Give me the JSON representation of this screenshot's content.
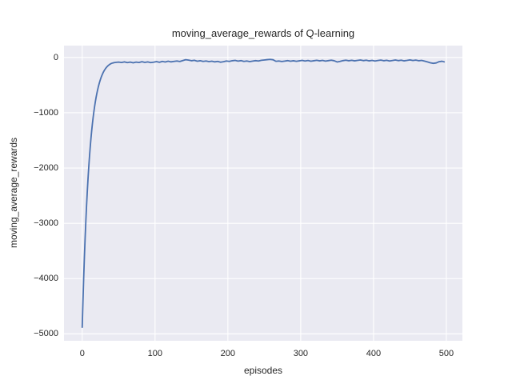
{
  "chart_data": {
    "type": "line",
    "title": "moving_average_rewards of Q-learning",
    "xlabel": "episodes",
    "ylabel": "moving_average_rewards",
    "grid": true,
    "legend": null,
    "xlim": [
      -25,
      522
    ],
    "ylim": [
      -5125,
      215
    ],
    "x_ticks": {
      "values": [
        0,
        100,
        200,
        300,
        400,
        500
      ],
      "labels": [
        "0",
        "100",
        "200",
        "300",
        "400",
        "500"
      ]
    },
    "y_ticks": {
      "values": [
        0,
        -1000,
        -2000,
        -3000,
        -4000,
        -5000
      ],
      "labels": [
        "0",
        "−1000",
        "−2000",
        "−3000",
        "−4000",
        "−5000"
      ]
    },
    "colors": {
      "line": "#4c72b0",
      "axes_background": "#eaeaf2",
      "grid": "#ffffff",
      "text": "#262626",
      "figure_background": "#ffffff"
    },
    "series": [
      {
        "name": "moving_average_rewards",
        "points": [
          [
            0,
            -4880
          ],
          [
            1,
            -4430
          ],
          [
            2,
            -4000
          ],
          [
            3,
            -3615
          ],
          [
            4,
            -3270
          ],
          [
            5,
            -2958
          ],
          [
            6,
            -2676
          ],
          [
            7,
            -2421
          ],
          [
            8,
            -2190
          ],
          [
            9,
            -1981
          ],
          [
            10,
            -1792
          ],
          [
            11,
            -1621
          ],
          [
            12,
            -1466
          ],
          [
            13,
            -1326
          ],
          [
            14,
            -1200
          ],
          [
            15,
            -1085
          ],
          [
            16,
            -982
          ],
          [
            17,
            -888
          ],
          [
            18,
            -803
          ],
          [
            19,
            -727
          ],
          [
            20,
            -657
          ],
          [
            21,
            -595
          ],
          [
            22,
            -538
          ],
          [
            23,
            -487
          ],
          [
            24,
            -440
          ],
          [
            25,
            -398
          ],
          [
            26,
            -360
          ],
          [
            27,
            -326
          ],
          [
            28,
            -295
          ],
          [
            29,
            -267
          ],
          [
            30,
            -242
          ],
          [
            32,
            -200
          ],
          [
            34,
            -168
          ],
          [
            36,
            -142
          ],
          [
            38,
            -122
          ],
          [
            40,
            -108
          ],
          [
            42,
            -99
          ],
          [
            44,
            -92
          ],
          [
            47,
            -87
          ],
          [
            50,
            -84
          ],
          [
            54,
            -91
          ],
          [
            58,
            -79
          ],
          [
            62,
            -93
          ],
          [
            66,
            -84
          ],
          [
            70,
            -96
          ],
          [
            74,
            -83
          ],
          [
            78,
            -91
          ],
          [
            82,
            -77
          ],
          [
            86,
            -89
          ],
          [
            90,
            -80
          ],
          [
            94,
            -92
          ],
          [
            98,
            -85
          ],
          [
            102,
            -75
          ],
          [
            106,
            -87
          ],
          [
            110,
            -71
          ],
          [
            114,
            -81
          ],
          [
            118,
            -67
          ],
          [
            122,
            -79
          ],
          [
            126,
            -71
          ],
          [
            130,
            -63
          ],
          [
            134,
            -73
          ],
          [
            138,
            -56
          ],
          [
            142,
            -40
          ],
          [
            146,
            -47
          ],
          [
            150,
            -59
          ],
          [
            154,
            -51
          ],
          [
            158,
            -67
          ],
          [
            162,
            -59
          ],
          [
            166,
            -71
          ],
          [
            170,
            -63
          ],
          [
            174,
            -75
          ],
          [
            178,
            -67
          ],
          [
            182,
            -79
          ],
          [
            186,
            -71
          ],
          [
            190,
            -86
          ],
          [
            194,
            -76
          ],
          [
            198,
            -63
          ],
          [
            202,
            -71
          ],
          [
            206,
            -59
          ],
          [
            210,
            -53
          ],
          [
            214,
            -65
          ],
          [
            218,
            -57
          ],
          [
            222,
            -71
          ],
          [
            226,
            -63
          ],
          [
            230,
            -75
          ],
          [
            234,
            -65
          ],
          [
            238,
            -57
          ],
          [
            242,
            -63
          ],
          [
            246,
            -51
          ],
          [
            250,
            -45
          ],
          [
            254,
            -39
          ],
          [
            258,
            -35
          ],
          [
            262,
            -41
          ],
          [
            266,
            -69
          ],
          [
            270,
            -63
          ],
          [
            274,
            -73
          ],
          [
            278,
            -65
          ],
          [
            282,
            -57
          ],
          [
            286,
            -67
          ],
          [
            290,
            -59
          ],
          [
            294,
            -69
          ],
          [
            298,
            -61
          ],
          [
            302,
            -53
          ],
          [
            306,
            -63
          ],
          [
            310,
            -55
          ],
          [
            314,
            -67
          ],
          [
            318,
            -59
          ],
          [
            322,
            -51
          ],
          [
            326,
            -61
          ],
          [
            330,
            -53
          ],
          [
            334,
            -65
          ],
          [
            338,
            -57
          ],
          [
            342,
            -49
          ],
          [
            346,
            -59
          ],
          [
            350,
            -81
          ],
          [
            354,
            -71
          ],
          [
            358,
            -57
          ],
          [
            362,
            -49
          ],
          [
            366,
            -59
          ],
          [
            370,
            -51
          ],
          [
            374,
            -61
          ],
          [
            378,
            -53
          ],
          [
            382,
            -45
          ],
          [
            386,
            -57
          ],
          [
            390,
            -49
          ],
          [
            394,
            -61
          ],
          [
            398,
            -53
          ],
          [
            402,
            -63
          ],
          [
            406,
            -55
          ],
          [
            410,
            -47
          ],
          [
            414,
            -59
          ],
          [
            418,
            -51
          ],
          [
            422,
            -63
          ],
          [
            426,
            -55
          ],
          [
            430,
            -45
          ],
          [
            434,
            -57
          ],
          [
            438,
            -49
          ],
          [
            442,
            -61
          ],
          [
            446,
            -53
          ],
          [
            450,
            -43
          ],
          [
            454,
            -55
          ],
          [
            458,
            -47
          ],
          [
            462,
            -59
          ],
          [
            466,
            -53
          ],
          [
            470,
            -65
          ],
          [
            474,
            -80
          ],
          [
            478,
            -96
          ],
          [
            482,
            -106
          ],
          [
            486,
            -99
          ],
          [
            490,
            -76
          ],
          [
            494,
            -68
          ],
          [
            497,
            -79
          ]
        ]
      }
    ]
  }
}
